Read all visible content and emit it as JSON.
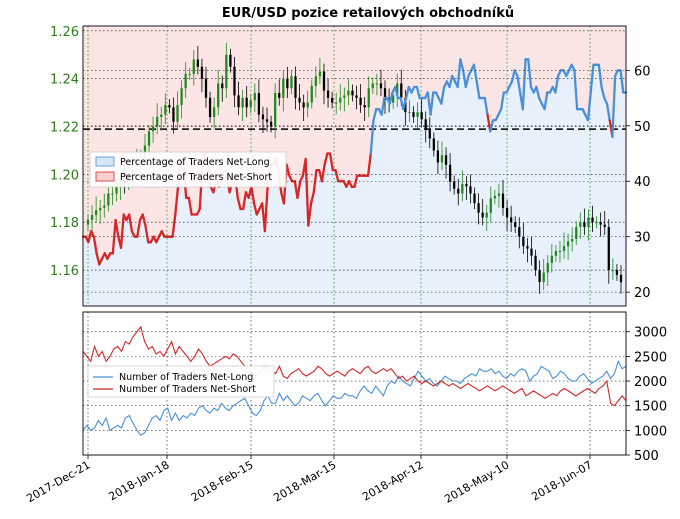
{
  "chart_data": [
    {
      "type": "candlestick-with-line",
      "title": "EUR/USD pozice retailových obchodníků",
      "price_axis": {
        "side": "left",
        "ylim": [
          1.145,
          1.262
        ],
        "ticks": [
          "1.26",
          "1.24",
          "1.22",
          "1.20",
          "1.18",
          "1.16"
        ],
        "color": "#2e7d1e"
      },
      "percent_axis": {
        "side": "right",
        "ylim": [
          17.5,
          68
        ],
        "ticks": [
          "60",
          "50",
          "40",
          "30",
          "20"
        ]
      },
      "x_ticks": [
        "2017-Dec-21",
        "2018-Jan-18",
        "2018-Feb-15",
        "2018-Mar-15",
        "2018-Apr-12",
        "2018-May-10",
        "2018-Jun-07"
      ],
      "grid": true,
      "reference_line": 49.4,
      "legend": {
        "placement": "center-left",
        "entries": [
          "Percentage of Traders Net-Long",
          "Percentage of Traders Net-Short"
        ]
      },
      "price_close": [
        1.181,
        1.183,
        1.185,
        1.186,
        1.187,
        1.192,
        1.192,
        1.195,
        1.2,
        1.196,
        1.2,
        1.203,
        1.205,
        1.207,
        1.212,
        1.218,
        1.22,
        1.224,
        1.225,
        1.229,
        1.228,
        1.222,
        1.229,
        1.236,
        1.242,
        1.242,
        1.248,
        1.245,
        1.24,
        1.232,
        1.224,
        1.228,
        1.238,
        1.236,
        1.25,
        1.245,
        1.233,
        1.228,
        1.232,
        1.228,
        1.231,
        1.234,
        1.225,
        1.223,
        1.222,
        1.22,
        1.234,
        1.232,
        1.24,
        1.236,
        1.241,
        1.232,
        1.23,
        1.228,
        1.23,
        1.237,
        1.241,
        1.243,
        1.235,
        1.232,
        1.23,
        1.23,
        1.232,
        1.233,
        1.235,
        1.233,
        1.232,
        1.229,
        1.228,
        1.236,
        1.238,
        1.238,
        1.236,
        1.231,
        1.23,
        1.233,
        1.238,
        1.232,
        1.226,
        1.226,
        1.224,
        1.226,
        1.223,
        1.219,
        1.215,
        1.21,
        1.205,
        1.208,
        1.204,
        1.197,
        1.194,
        1.192,
        1.196,
        1.195,
        1.192,
        1.188,
        1.184,
        1.182,
        1.184,
        1.19,
        1.191,
        1.192,
        1.186,
        1.182,
        1.18,
        1.178,
        1.174,
        1.17,
        1.169,
        1.166,
        1.16,
        1.155,
        1.159,
        1.163,
        1.166,
        1.168,
        1.168,
        1.17,
        1.172,
        1.173,
        1.178,
        1.18,
        1.178,
        1.182,
        1.18,
        1.18,
        1.179,
        1.178,
        1.16,
        1.16,
        1.158,
        1.155
      ],
      "percent_net_long": [
        30,
        30,
        29,
        31,
        30,
        27,
        25,
        26,
        27,
        26,
        27,
        27,
        33,
        30,
        28,
        34,
        33,
        34,
        31,
        30,
        30,
        33,
        34,
        32,
        29,
        29,
        30,
        29,
        30,
        31,
        30,
        30,
        30,
        30,
        34,
        39,
        44,
        43,
        37,
        37,
        34,
        34,
        34,
        35,
        43,
        45,
        43,
        39,
        38,
        40,
        39,
        40,
        40,
        41,
        38,
        40,
        41,
        37,
        35,
        35,
        38,
        37,
        39,
        36,
        34,
        35,
        36,
        31,
        39,
        43,
        43,
        44,
        42,
        38,
        36,
        43,
        41,
        40,
        40,
        37,
        40,
        41,
        44,
        32,
        36,
        38,
        42,
        42,
        40,
        43,
        45,
        45,
        42,
        42,
        40,
        40,
        40,
        39,
        40,
        39,
        39,
        41,
        41,
        41,
        41,
        41,
        45,
        51,
        53,
        53,
        52,
        55,
        55,
        54,
        56,
        57,
        55,
        55,
        53,
        55,
        57,
        56,
        57,
        57,
        55,
        55,
        55,
        56,
        52,
        56,
        56,
        55,
        54,
        57,
        58,
        57,
        59,
        58,
        57,
        62,
        60,
        57,
        59,
        60,
        61,
        58,
        55,
        55,
        55,
        52,
        49,
        51,
        51,
        52,
        53,
        56,
        56,
        57,
        58,
        60,
        59,
        56,
        53,
        62,
        62,
        57,
        56,
        57,
        55,
        54,
        53,
        56,
        56,
        57,
        56,
        59,
        60,
        60,
        59,
        60,
        61,
        60,
        53,
        53,
        53,
        52,
        51,
        56,
        61,
        61,
        61,
        57,
        55,
        54,
        51,
        48,
        59,
        60,
        60,
        56,
        56
      ],
      "volume": {
        "ylim": [
          500,
          3400
        ],
        "ticks": [
          "3000",
          "2500",
          "2000",
          "1500",
          "1000",
          "500"
        ],
        "legend": {
          "placement": "center-left",
          "entries": [
            "Number of Traders Net-Long",
            "Number of Traders Net-Short"
          ]
        },
        "net_long": [
          1000,
          1100,
          1000,
          1050,
          1200,
          1100,
          1250,
          1000,
          1050,
          1100,
          1050,
          1250,
          1300,
          1150,
          1000,
          900,
          950,
          1100,
          1250,
          1300,
          1200,
          1400,
          1450,
          1200,
          1350,
          1200,
          1300,
          1250,
          1350,
          1300,
          1450,
          1500,
          1400,
          1350,
          1450,
          1400,
          1550,
          1450,
          1400,
          1500,
          1550,
          1600,
          1650,
          1500,
          1350,
          1300,
          1400,
          1600,
          1700,
          1550,
          1550,
          1750,
          1600,
          1700,
          1600,
          1500,
          1550,
          1700,
          1650,
          1600,
          1700,
          1750,
          1600,
          1500,
          1600,
          1700,
          1650,
          1650,
          1750,
          1700,
          1700,
          1650,
          1800,
          1900,
          1800,
          1750,
          1900,
          1800,
          1700,
          1900,
          2000,
          1950,
          2100,
          2000,
          1950,
          1900,
          2050,
          2200,
          2100,
          2000,
          2050,
          1950,
          1900,
          2000,
          2100,
          2050,
          2000,
          2000,
          1950,
          2050,
          2100,
          2150,
          2100,
          2250,
          2200,
          2200,
          2250,
          2150,
          2200,
          2100,
          2050,
          2150,
          2100,
          2200,
          2250,
          2200,
          2000,
          2100,
          2150,
          2300,
          2250,
          2200,
          2050,
          2100,
          2200,
          2150,
          2050,
          2000,
          2000,
          2100,
          2150,
          2050,
          1950,
          2000,
          2050,
          2100,
          2200,
          2050,
          2150,
          2400,
          2250,
          2300
        ],
        "net_short": [
          2600,
          2500,
          2400,
          2700,
          2500,
          2600,
          2400,
          2500,
          2650,
          2700,
          2600,
          2800,
          2750,
          2900,
          3000,
          3100,
          2800,
          2650,
          2700,
          2550,
          2600,
          2500,
          2650,
          2800,
          2550,
          2700,
          2600,
          2500,
          2400,
          2500,
          2650,
          2550,
          2400,
          2300,
          2350,
          2400,
          2450,
          2500,
          2450,
          2550,
          2500,
          2400,
          2300,
          2250,
          2150,
          2100,
          2200,
          2300,
          2250,
          2200,
          2150,
          2300,
          2100,
          2050,
          2150,
          2200,
          2250,
          2150,
          2100,
          2150,
          2200,
          2300,
          2250,
          2150,
          2100,
          2150,
          2200,
          2150,
          2100,
          2200,
          2250,
          2200,
          2150,
          2250,
          2300,
          2200,
          2150,
          2200,
          2250,
          2200,
          2250,
          2150,
          2050,
          2100,
          2000,
          2050,
          2100,
          2000,
          1950,
          2000,
          1950,
          1900,
          1950,
          2000,
          1950,
          1900,
          1950,
          1900,
          1850,
          1900,
          1950,
          1900,
          1850,
          1800,
          1850,
          1900,
          1850,
          1800,
          1850,
          1900,
          1850,
          1800,
          1750,
          1800,
          1850,
          1700,
          1750,
          1800,
          1750,
          1700,
          1650,
          1700,
          1750,
          1700,
          1800,
          1850,
          1800,
          1750,
          1700,
          1750,
          1800,
          1850,
          1800,
          1750,
          1850,
          1900,
          2000,
          1550,
          1500,
          1600,
          1700,
          1600
        ]
      }
    }
  ],
  "colors": {
    "net_long": "#4a90d9",
    "net_short": "#d62728",
    "candle_up": "#1e8a1e",
    "candle_down": "#000000",
    "long_fill": "#d6e6f7",
    "short_fill": "#f7d0cf"
  }
}
